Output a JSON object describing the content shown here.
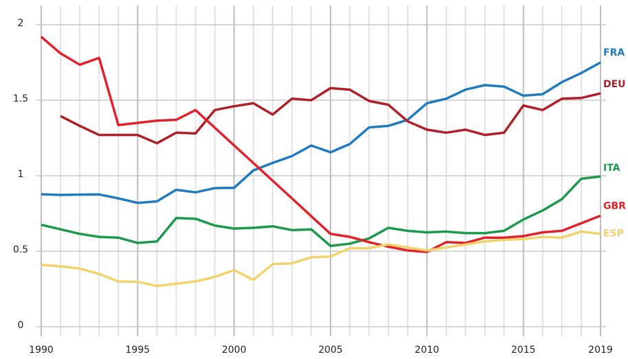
{
  "chart_data": {
    "type": "line",
    "x": [
      1990,
      1991,
      1992,
      1993,
      1994,
      1995,
      1996,
      1997,
      1998,
      1999,
      2000,
      2001,
      2002,
      2003,
      2004,
      2005,
      2006,
      2007,
      2008,
      2009,
      2010,
      2011,
      2012,
      2013,
      2014,
      2015,
      2016,
      2017,
      2018,
      2019
    ],
    "xlim": [
      1990,
      2019
    ],
    "xticks": [
      1990,
      1995,
      2000,
      2005,
      2010,
      2015,
      2019
    ],
    "ylim": [
      0,
      2
    ],
    "yticks": [
      0,
      0.5,
      1,
      1.5,
      2
    ],
    "grid": true,
    "series": [
      {
        "name": "FRA",
        "color": "#1f7bbf",
        "values": [
          0.877,
          0.873,
          0.875,
          0.876,
          0.85,
          0.82,
          0.83,
          0.907,
          0.89,
          0.918,
          0.92,
          1.035,
          1.085,
          1.13,
          1.2,
          1.155,
          1.21,
          1.32,
          1.33,
          1.37,
          1.48,
          1.51,
          1.57,
          1.6,
          1.59,
          1.53,
          1.54,
          1.62,
          1.68,
          1.75
        ]
      },
      {
        "name": "DEU",
        "color": "#b01e28",
        "values": [
          null,
          1.395,
          1.33,
          1.27,
          1.27,
          1.27,
          1.215,
          1.285,
          1.28,
          1.435,
          1.46,
          1.48,
          1.405,
          1.51,
          1.5,
          1.58,
          1.57,
          1.495,
          1.47,
          1.36,
          1.305,
          1.285,
          1.305,
          1.27,
          1.285,
          1.465,
          1.435,
          1.51,
          1.515,
          1.545
        ]
      },
      {
        "name": "ITA",
        "color": "#1a9a4a",
        "values": [
          0.675,
          0.645,
          0.615,
          0.595,
          0.59,
          0.555,
          0.565,
          0.72,
          0.715,
          0.67,
          0.65,
          0.655,
          0.665,
          0.64,
          0.645,
          0.535,
          0.55,
          0.585,
          0.655,
          0.635,
          0.625,
          0.63,
          0.62,
          0.62,
          0.635,
          0.71,
          0.77,
          0.845,
          0.98,
          0.995
        ]
      },
      {
        "name": "GBR",
        "color": "#e3212b",
        "values": [
          1.92,
          1.81,
          1.735,
          1.78,
          1.335,
          1.35,
          1.365,
          1.37,
          1.435,
          1.318,
          1.201,
          1.084,
          0.967,
          0.85,
          0.732,
          0.615,
          0.595,
          0.56,
          0.53,
          0.505,
          0.495,
          0.56,
          0.555,
          0.59,
          0.59,
          0.6,
          0.625,
          0.635,
          0.685,
          0.735
        ]
      },
      {
        "name": "ESP",
        "color": "#f2d26b",
        "values": [
          0.41,
          0.4,
          0.385,
          0.35,
          0.3,
          0.298,
          0.27,
          0.285,
          0.3,
          0.33,
          0.375,
          0.31,
          0.415,
          0.42,
          0.46,
          0.465,
          0.52,
          0.52,
          0.545,
          0.525,
          0.505,
          0.525,
          0.545,
          0.565,
          0.575,
          0.58,
          0.595,
          0.59,
          0.63,
          0.615
        ]
      }
    ]
  }
}
